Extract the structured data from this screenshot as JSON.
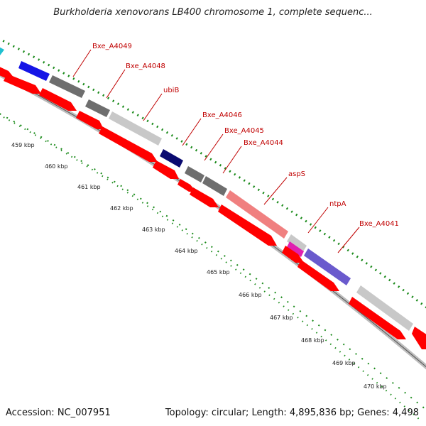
{
  "header": {
    "title": "Burkholderia xenovorans LB400 chromosome 1, complete sequenc..."
  },
  "footer": {
    "accession": "Accession: NC_007951",
    "summary": "Topology: circular; Length: 4,895,836 bp; Genes: 4,498"
  },
  "colors": {
    "cds_red": "#ff0000",
    "gray_feature": "#6e6e6e",
    "light_gray_feature": "#c8c8c8",
    "blue_feature": "#1515e6",
    "navy_feature": "#0a0a70",
    "salmon_feature": "#f08080",
    "magenta_feature": "#e020b0",
    "slate_blue_feature": "#6a5acd",
    "cyan_feature": "#20c0d0",
    "orange_feature": "#f0a000",
    "tick_green": "#1a8a1a",
    "label_red": "#c00000"
  },
  "map": {
    "kbp_labels": [
      "459 kbp",
      "460 kbp",
      "461 kbp",
      "462 kbp",
      "463 kbp",
      "464 kbp",
      "465 kbp",
      "466 kbp",
      "467 kbp",
      "468 kbp",
      "469 kbp",
      "470 kbp"
    ],
    "gene_labels": [
      "Bxe_A4049",
      "Bxe_A4048",
      "ubiB",
      "Bxe_A4046",
      "Bxe_A4045",
      "Bxe_A4044",
      "aspS",
      "ntpA",
      "Bxe_A4041"
    ]
  }
}
